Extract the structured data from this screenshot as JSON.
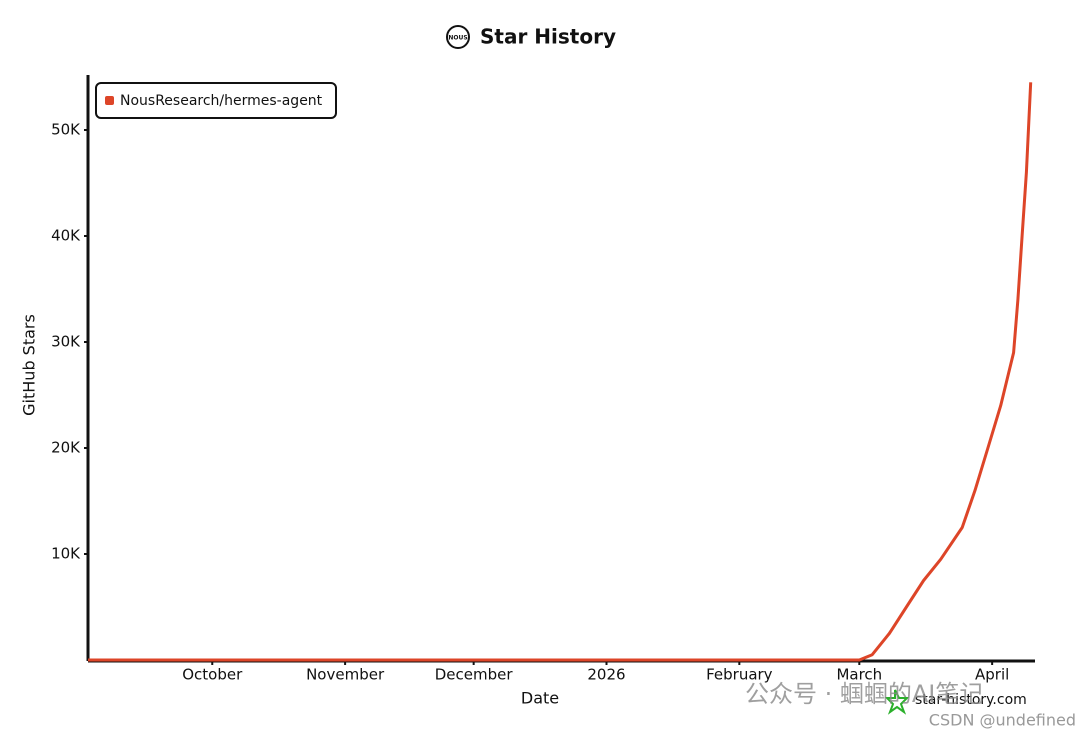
{
  "chart_data": {
    "type": "line",
    "title": "Star History",
    "logo_text": "NOUS",
    "xlabel": "Date",
    "ylabel": "GitHub Stars",
    "x": [
      "2025-09-02",
      "2025-10-15",
      "2025-12-01",
      "2026-01-20",
      "2026-03-01",
      "2026-03-04",
      "2026-03-08",
      "2026-03-12",
      "2026-03-16",
      "2026-03-20",
      "2026-03-25",
      "2026-03-28",
      "2026-03-31",
      "2026-04-03",
      "2026-04-06",
      "2026-04-07",
      "2026-04-08",
      "2026-04-09",
      "2026-04-10"
    ],
    "series": [
      {
        "name": "NousResearch/hermes-agent",
        "color": "#dd4528",
        "values": [
          0,
          0,
          0,
          0,
          0,
          500,
          2500,
          5000,
          7500,
          9500,
          12500,
          16000,
          20000,
          24000,
          29000,
          34000,
          40000,
          46000,
          54500
        ]
      }
    ],
    "xlim": [
      "2025-09-02",
      "2026-04-11"
    ],
    "xticks": [
      {
        "value": "2025-10-01",
        "label": "October"
      },
      {
        "value": "2025-11-01",
        "label": "November"
      },
      {
        "value": "2025-12-01",
        "label": "December"
      },
      {
        "value": "2026-01-01",
        "label": "2026"
      },
      {
        "value": "2026-02-01",
        "label": "February"
      },
      {
        "value": "2026-03-01",
        "label": "March"
      },
      {
        "value": "2026-04-01",
        "label": "April"
      }
    ],
    "ylim": [
      0,
      55000
    ],
    "yticks": [
      {
        "value": 10000,
        "label": "10K"
      },
      {
        "value": 20000,
        "label": "20K"
      },
      {
        "value": 30000,
        "label": "30K"
      },
      {
        "value": 40000,
        "label": "40K"
      },
      {
        "value": 50000,
        "label": "50K"
      }
    ],
    "grid": false,
    "legend": "upper left",
    "source": "star-history.com",
    "watermarks": [
      "公众号 · 蝈蝈的AI笔记",
      "CSDN @undefined"
    ]
  }
}
